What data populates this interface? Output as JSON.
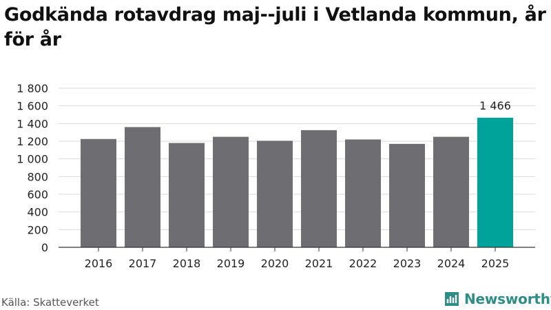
{
  "title": "Godkända rotavdrag maj--juli i Vetlanda kommun, år för år",
  "source": "Källa: Skatteverket",
  "brand": {
    "name": "Newsworthy",
    "icon": "newsworthy-logo-icon",
    "color": "#2e8d87"
  },
  "chart_data": {
    "type": "bar",
    "categories": [
      "2016",
      "2017",
      "2018",
      "2019",
      "2020",
      "2021",
      "2022",
      "2023",
      "2024",
      "2025"
    ],
    "values": [
      1225,
      1360,
      1180,
      1250,
      1205,
      1325,
      1220,
      1170,
      1250,
      1466
    ],
    "ylim": [
      0,
      1800
    ],
    "yticks": [
      0,
      200,
      400,
      600,
      800,
      1000,
      1200,
      1400,
      1600,
      1800
    ],
    "ytick_labels": [
      "0",
      "200",
      "400",
      "600",
      "800",
      "1 000",
      "1 200",
      "1 400",
      "1 600",
      "1 800"
    ],
    "data_labels": [
      {
        "category": "2025",
        "text": "1 466"
      }
    ],
    "highlight": {
      "category": "2025",
      "color": "#00a39a"
    },
    "bar_color": "#6e6d72",
    "grid": true
  }
}
